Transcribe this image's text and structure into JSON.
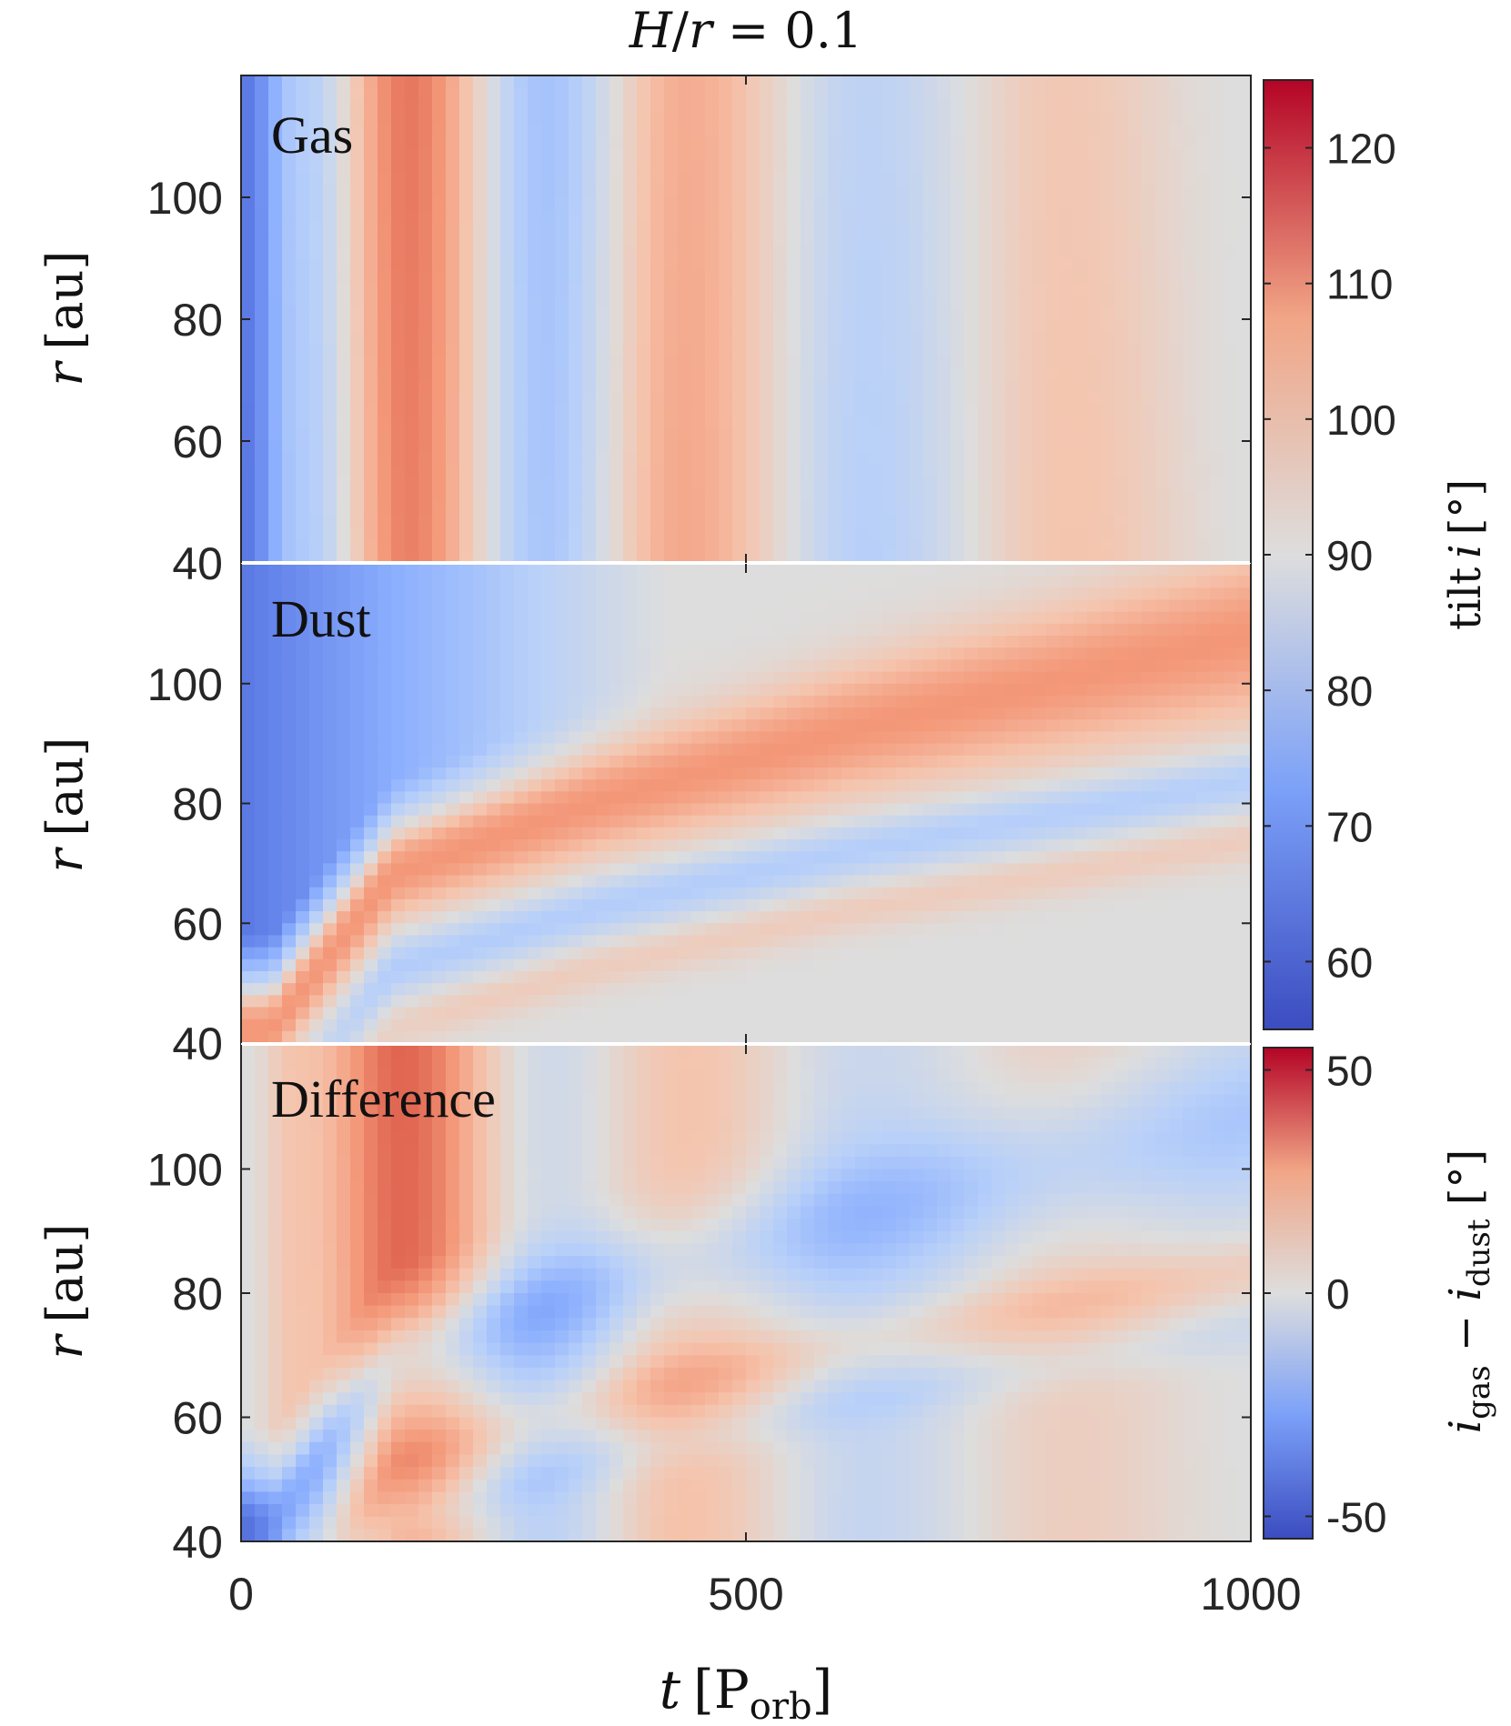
{
  "chart_data": [
    {
      "type": "heatmap",
      "panel_label": "Gas",
      "title": "H/r = 0.1",
      "title_parts": [
        "H",
        "/",
        "r",
        " = 0.1"
      ],
      "xlabel": "t [P_orb]",
      "ylabel_parts": [
        "r",
        "[au]"
      ],
      "xlim": [
        0,
        1000
      ],
      "ylim": [
        40,
        120
      ],
      "yticks": [
        "40",
        "60",
        "80",
        "100"
      ],
      "xticks": [
        "0",
        "500",
        "1000"
      ],
      "colorbar": {
        "label_parts": [
          "tilt",
          "i",
          "[°]"
        ],
        "range": [
          55,
          125
        ],
        "ticks": [
          "60",
          "70",
          "80",
          "90",
          "100",
          "110",
          "120"
        ],
        "tick_values": [
          60,
          70,
          80,
          90,
          100,
          110,
          120
        ],
        "colormap": "coolwarm"
      },
      "description_of_field": {
        "t_oscillation": "tilt oscillates in time, nearly independent of r",
        "phases": [
          {
            "t": 0,
            "tilt": 62
          },
          {
            "t": 60,
            "tilt": 80
          },
          {
            "t": 165,
            "tilt": 112
          },
          {
            "t": 300,
            "tilt": 78
          },
          {
            "t": 440,
            "tilt": 104
          },
          {
            "t": 620,
            "tilt": 82
          },
          {
            "t": 820,
            "tilt": 98
          },
          {
            "t": 1000,
            "tilt": 90
          }
        ]
      }
    },
    {
      "type": "heatmap",
      "panel_label": "Dust",
      "xlim": [
        0,
        1000
      ],
      "ylim": [
        40,
        120
      ],
      "yticks": [
        "40",
        "60",
        "80",
        "100"
      ],
      "features": [
        {
          "name": "tilted ridge",
          "tilt": 108,
          "path_t": [
            30,
            150,
            350,
            600,
            1000
          ],
          "path_r": [
            42,
            68,
            80,
            92,
            108
          ]
        },
        {
          "name": "low-tilt wedge",
          "tilt": 62,
          "region": "t < 250, r > 75"
        }
      ]
    },
    {
      "type": "heatmap",
      "panel_label": "Difference",
      "xlim": [
        0,
        1000
      ],
      "ylim": [
        40,
        120
      ],
      "yticks": [
        "40",
        "60",
        "80",
        "100"
      ],
      "colorbar": {
        "label_parts": [
          "i",
          "gas",
          " − ",
          "i",
          "dust",
          " [°]"
        ],
        "range": [
          -55,
          55
        ],
        "ticks": [
          "-50",
          "0",
          "50"
        ],
        "tick_values": [
          -50,
          0,
          50
        ],
        "colormap": "coolwarm"
      },
      "features": [
        {
          "name": "positive lobe",
          "t": 160,
          "r": 103,
          "value": 45
        },
        {
          "name": "negative lobe",
          "t": 640,
          "r": 95,
          "value": -25
        },
        {
          "name": "negative lobe",
          "t": 300,
          "r": 75,
          "value": -22
        }
      ]
    }
  ],
  "shared_x_label_parts": [
    "t",
    "[P",
    "orb",
    "]"
  ]
}
